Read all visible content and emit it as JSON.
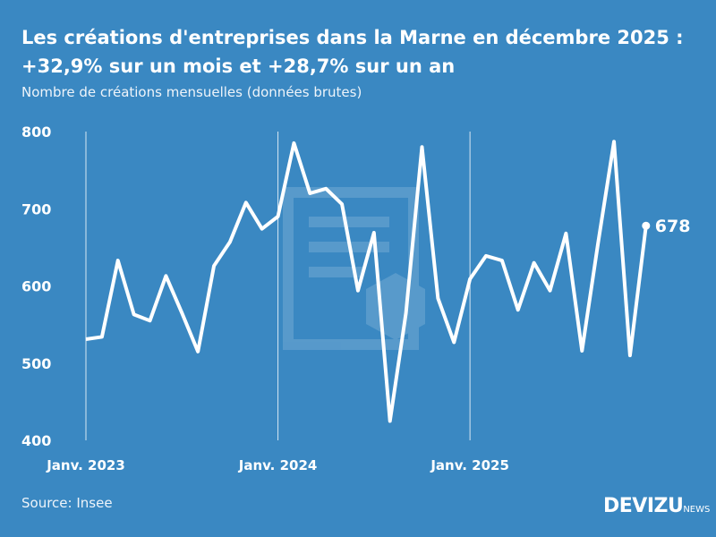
{
  "header": {
    "title_line1": "Les créations d'entreprises dans la Marne en décembre 2025 :",
    "title_line2": "+32,9% sur un mois et +28,7% sur un an",
    "subtitle": "Nombre de créations mensuelles (données brutes)"
  },
  "footer": {
    "source": "Source: Insee",
    "logo_main": "DEVIZU",
    "logo_suffix": "NEWS"
  },
  "colors": {
    "background": "#3a88c2",
    "line": "#ffffff"
  },
  "chart_data": {
    "type": "line",
    "title": "Les créations d'entreprises dans la Marne en décembre 2025 : +32,9% sur un mois et +28,7% sur un an",
    "ylim": [
      400,
      800
    ],
    "yticks": [
      "400",
      "500",
      "600",
      "700",
      "800"
    ],
    "xtick_labels": [
      "Janv. 2023",
      "Janv. 2024",
      "Janv. 2025"
    ],
    "x_start": "2023-01",
    "x_end": "2025-12",
    "values": [
      531,
      534,
      633,
      563,
      555,
      613,
      565,
      515,
      626,
      657,
      708,
      674,
      690,
      785,
      720,
      726,
      706,
      594,
      669,
      425,
      565,
      780,
      584,
      527,
      609,
      639,
      633,
      569,
      630,
      594,
      668,
      516,
      655,
      787,
      510,
      678
    ],
    "last_label": "678",
    "grid": "vertical lines at January"
  }
}
